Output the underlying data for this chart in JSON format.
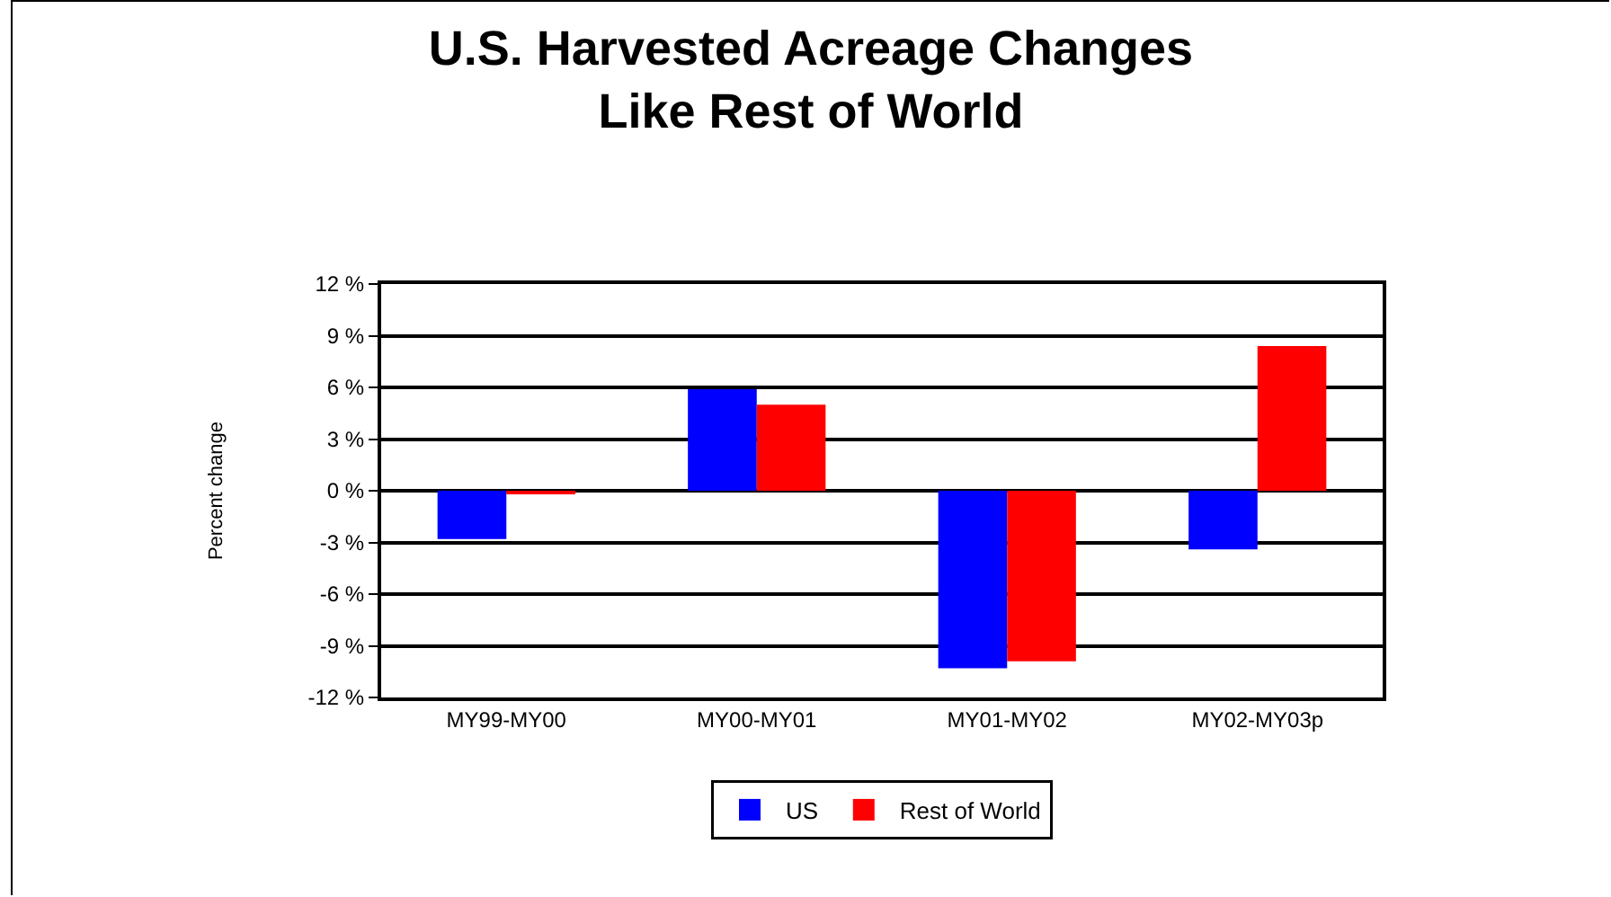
{
  "chart_data": {
    "type": "bar",
    "title": "U.S. Harvested Acreage Changes\nLike Rest of World",
    "ylabel": "Percent change",
    "categories": [
      "MY99-MY00",
      "MY00-MY01",
      "MY01-MY02",
      "MY02-MY03p"
    ],
    "series": [
      {
        "name": "US",
        "color": "#0000ff",
        "values": [
          -2.8,
          5.9,
          -10.3,
          -3.4
        ]
      },
      {
        "name": "Rest of World",
        "color": "#ff0000",
        "values": [
          -0.2,
          5.0,
          -9.9,
          8.4
        ]
      }
    ],
    "ylim": [
      -12,
      12
    ],
    "yticks": [
      {
        "value": -12,
        "label": "-12 %"
      },
      {
        "value": -9,
        "label": "-9 %"
      },
      {
        "value": -6,
        "label": "-6 %"
      },
      {
        "value": -3,
        "label": "-3 %"
      },
      {
        "value": 0,
        "label": "0 %"
      },
      {
        "value": 3,
        "label": "3 %"
      },
      {
        "value": 6,
        "label": "6 %"
      },
      {
        "value": 9,
        "label": "9 %"
      },
      {
        "value": 12,
        "label": "12 %"
      }
    ],
    "grid": "y",
    "legend": "bottom"
  }
}
